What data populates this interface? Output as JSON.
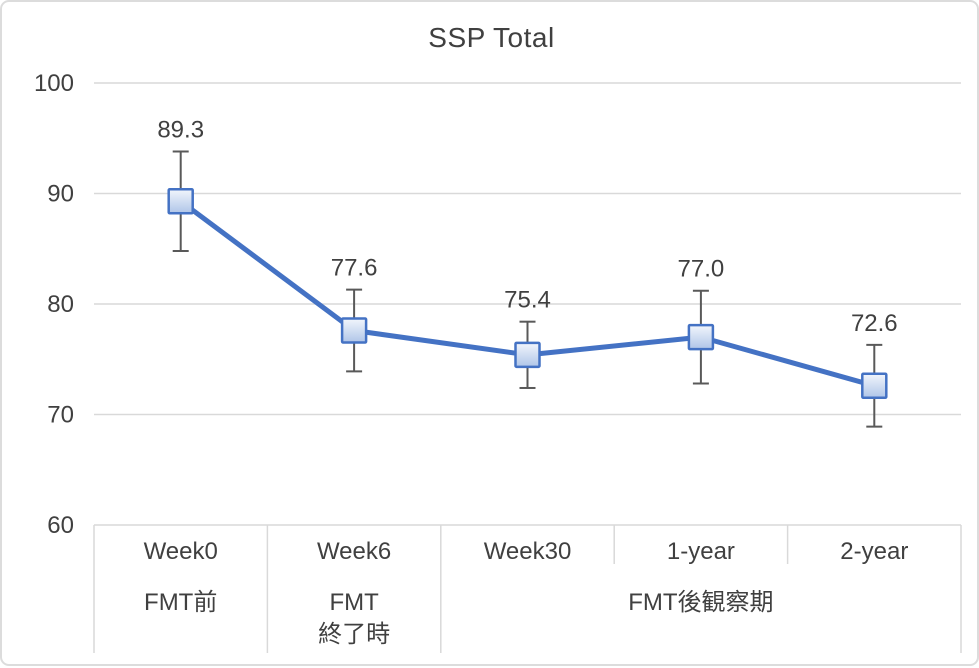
{
  "chart": {
    "title": "SSP Total"
  },
  "chart_data": {
    "type": "line",
    "title": "SSP Total",
    "categories": [
      "Week0",
      "Week6",
      "Week30",
      "1-year",
      "2-year"
    ],
    "category_groups": [
      {
        "label": "FMT前",
        "start": 0,
        "end": 0
      },
      {
        "label": "FMT\n終了時",
        "start": 1,
        "end": 1
      },
      {
        "label": "FMT後観察期",
        "start": 2,
        "end": 4
      }
    ],
    "series": [
      {
        "name": "SSP Total",
        "values": [
          89.3,
          77.6,
          75.4,
          77.0,
          72.6
        ],
        "data_labels": [
          "89.3",
          "77.6",
          "75.4",
          "77.0",
          "72.6"
        ],
        "error_bars_plus_minus": [
          4.5,
          3.7,
          3.0,
          4.2,
          3.7
        ]
      }
    ],
    "y_ticks": [
      100,
      90,
      80,
      70,
      60
    ],
    "ylim": [
      60,
      100
    ],
    "grid": true,
    "legend": "none",
    "marker": "square",
    "colors": {
      "line": "#4472C4",
      "marker_border": "#4472C4",
      "marker_fill_top": "#F2F6FC",
      "marker_fill_bottom": "#AFC5E8",
      "error_bar": "#595959",
      "gridline": "#D9D9D9",
      "axis_table_border": "#D9D9D9",
      "text": "#404040"
    }
  }
}
